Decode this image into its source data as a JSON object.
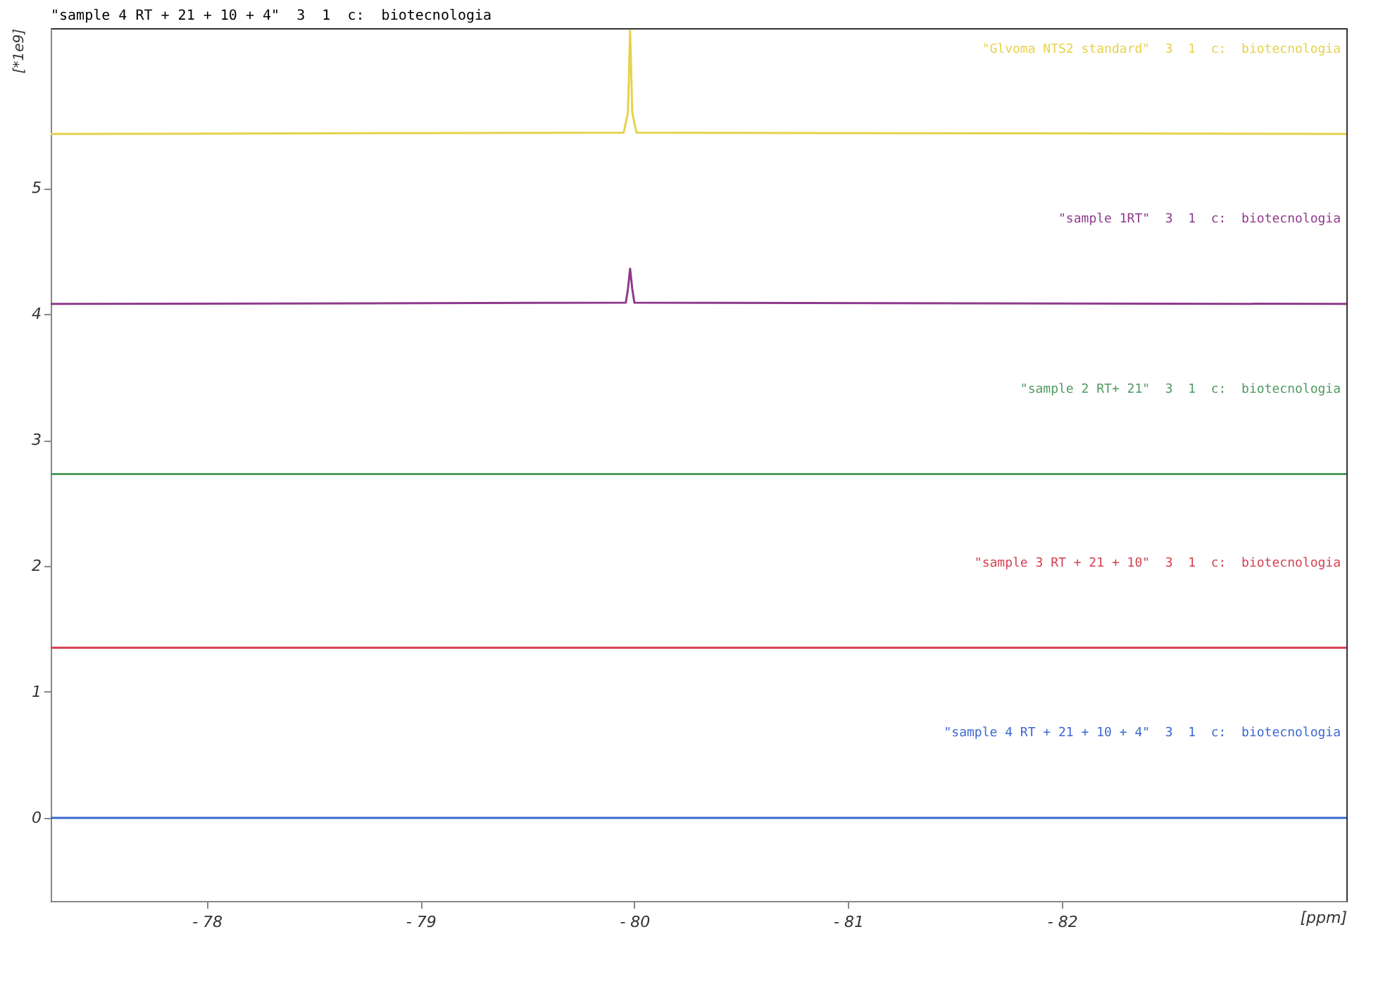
{
  "chart_data": {
    "type": "line",
    "title": "\"sample 4 RT + 21 + 10 + 4\"  3  1  c:  biotecnologia",
    "xlabel": "[ppm]",
    "ylabel": "[*1e9]",
    "xlim": [
      -77.27,
      -83.33
    ],
    "ylim": [
      -0.66,
      6.27
    ],
    "xticks": [
      {
        "value": -78,
        "label": "- 78"
      },
      {
        "value": -79,
        "label": "- 79"
      },
      {
        "value": -80,
        "label": "- 80"
      },
      {
        "value": -81,
        "label": "- 81"
      },
      {
        "value": -82,
        "label": "- 82"
      }
    ],
    "yticks": [
      0,
      1,
      2,
      3,
      4,
      5
    ],
    "grid": false,
    "legend": false,
    "series": [
      {
        "name": "\"Glvoma NTS2 standard\"  3  1  c:  biotecnologia",
        "color": "#e6d24a",
        "x": [
          -77.27,
          -79.95,
          -79.97,
          -79.98,
          -79.99,
          -80.01,
          -83.33
        ],
        "values": [
          5.43,
          5.44,
          5.6,
          6.25,
          5.6,
          5.44,
          5.43
        ]
      },
      {
        "name": "\"sample 1RT\"  3  1  c:  biotecnologia",
        "color": "#8e3a8c",
        "x": [
          -77.27,
          -79.96,
          -79.97,
          -79.98,
          -79.99,
          -80.0,
          -83.33
        ],
        "values": [
          4.08,
          4.09,
          4.2,
          4.36,
          4.2,
          4.09,
          4.08
        ]
      },
      {
        "name": "\"sample 2 RT+ 21\"  3  1  c:  biotecnologia",
        "color": "#4e9a5e",
        "x": [
          -77.27,
          -83.33
        ],
        "values": [
          2.73,
          2.73
        ]
      },
      {
        "name": "\"sample 3 RT + 21 + 10\"  3  1  c:  biotecnologia",
        "color": "#d4404e",
        "x": [
          -77.27,
          -83.33
        ],
        "values": [
          1.35,
          1.35
        ]
      },
      {
        "name": "\"sample 4 RT + 21 + 10 + 4\"  3  1  c:  biotecnologia",
        "color": "#3a68d2",
        "x": [
          -77.27,
          -83.33
        ],
        "values": [
          0,
          0
        ]
      }
    ]
  }
}
